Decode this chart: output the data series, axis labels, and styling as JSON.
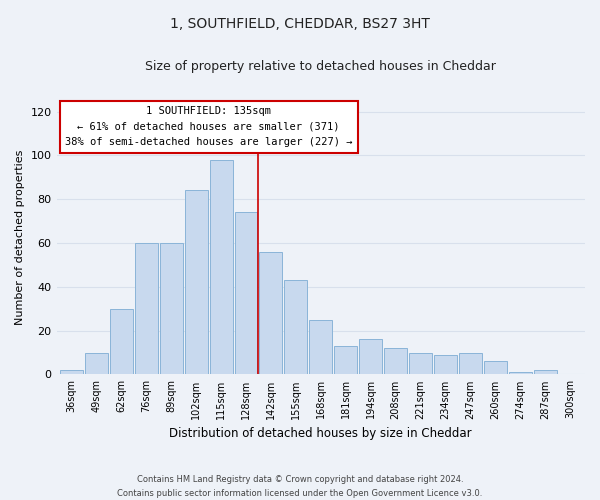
{
  "title": "1, SOUTHFIELD, CHEDDAR, BS27 3HT",
  "subtitle": "Size of property relative to detached houses in Cheddar",
  "xlabel": "Distribution of detached houses by size in Cheddar",
  "ylabel": "Number of detached properties",
  "footer_line1": "Contains HM Land Registry data © Crown copyright and database right 2024.",
  "footer_line2": "Contains public sector information licensed under the Open Government Licence v3.0.",
  "bar_labels": [
    "36sqm",
    "49sqm",
    "62sqm",
    "76sqm",
    "89sqm",
    "102sqm",
    "115sqm",
    "128sqm",
    "142sqm",
    "155sqm",
    "168sqm",
    "181sqm",
    "194sqm",
    "208sqm",
    "221sqm",
    "234sqm",
    "247sqm",
    "260sqm",
    "274sqm",
    "287sqm",
    "300sqm"
  ],
  "bar_values": [
    2,
    10,
    30,
    60,
    60,
    84,
    98,
    74,
    56,
    43,
    25,
    13,
    16,
    12,
    10,
    9,
    10,
    6,
    1,
    2,
    0
  ],
  "bar_color": "#c8d9ee",
  "bar_edge_color": "#8ab4d8",
  "vline_color": "#cc0000",
  "ylim": [
    0,
    125
  ],
  "yticks": [
    0,
    20,
    40,
    60,
    80,
    100,
    120
  ],
  "annotation_title": "1 SOUTHFIELD: 135sqm",
  "annotation_line1": "← 61% of detached houses are smaller (371)",
  "annotation_line2": "38% of semi-detached houses are larger (227) →",
  "annotation_box_color": "#ffffff",
  "annotation_box_edge": "#cc0000",
  "background_color": "#eef2f8",
  "grid_color": "#d8e0ec"
}
